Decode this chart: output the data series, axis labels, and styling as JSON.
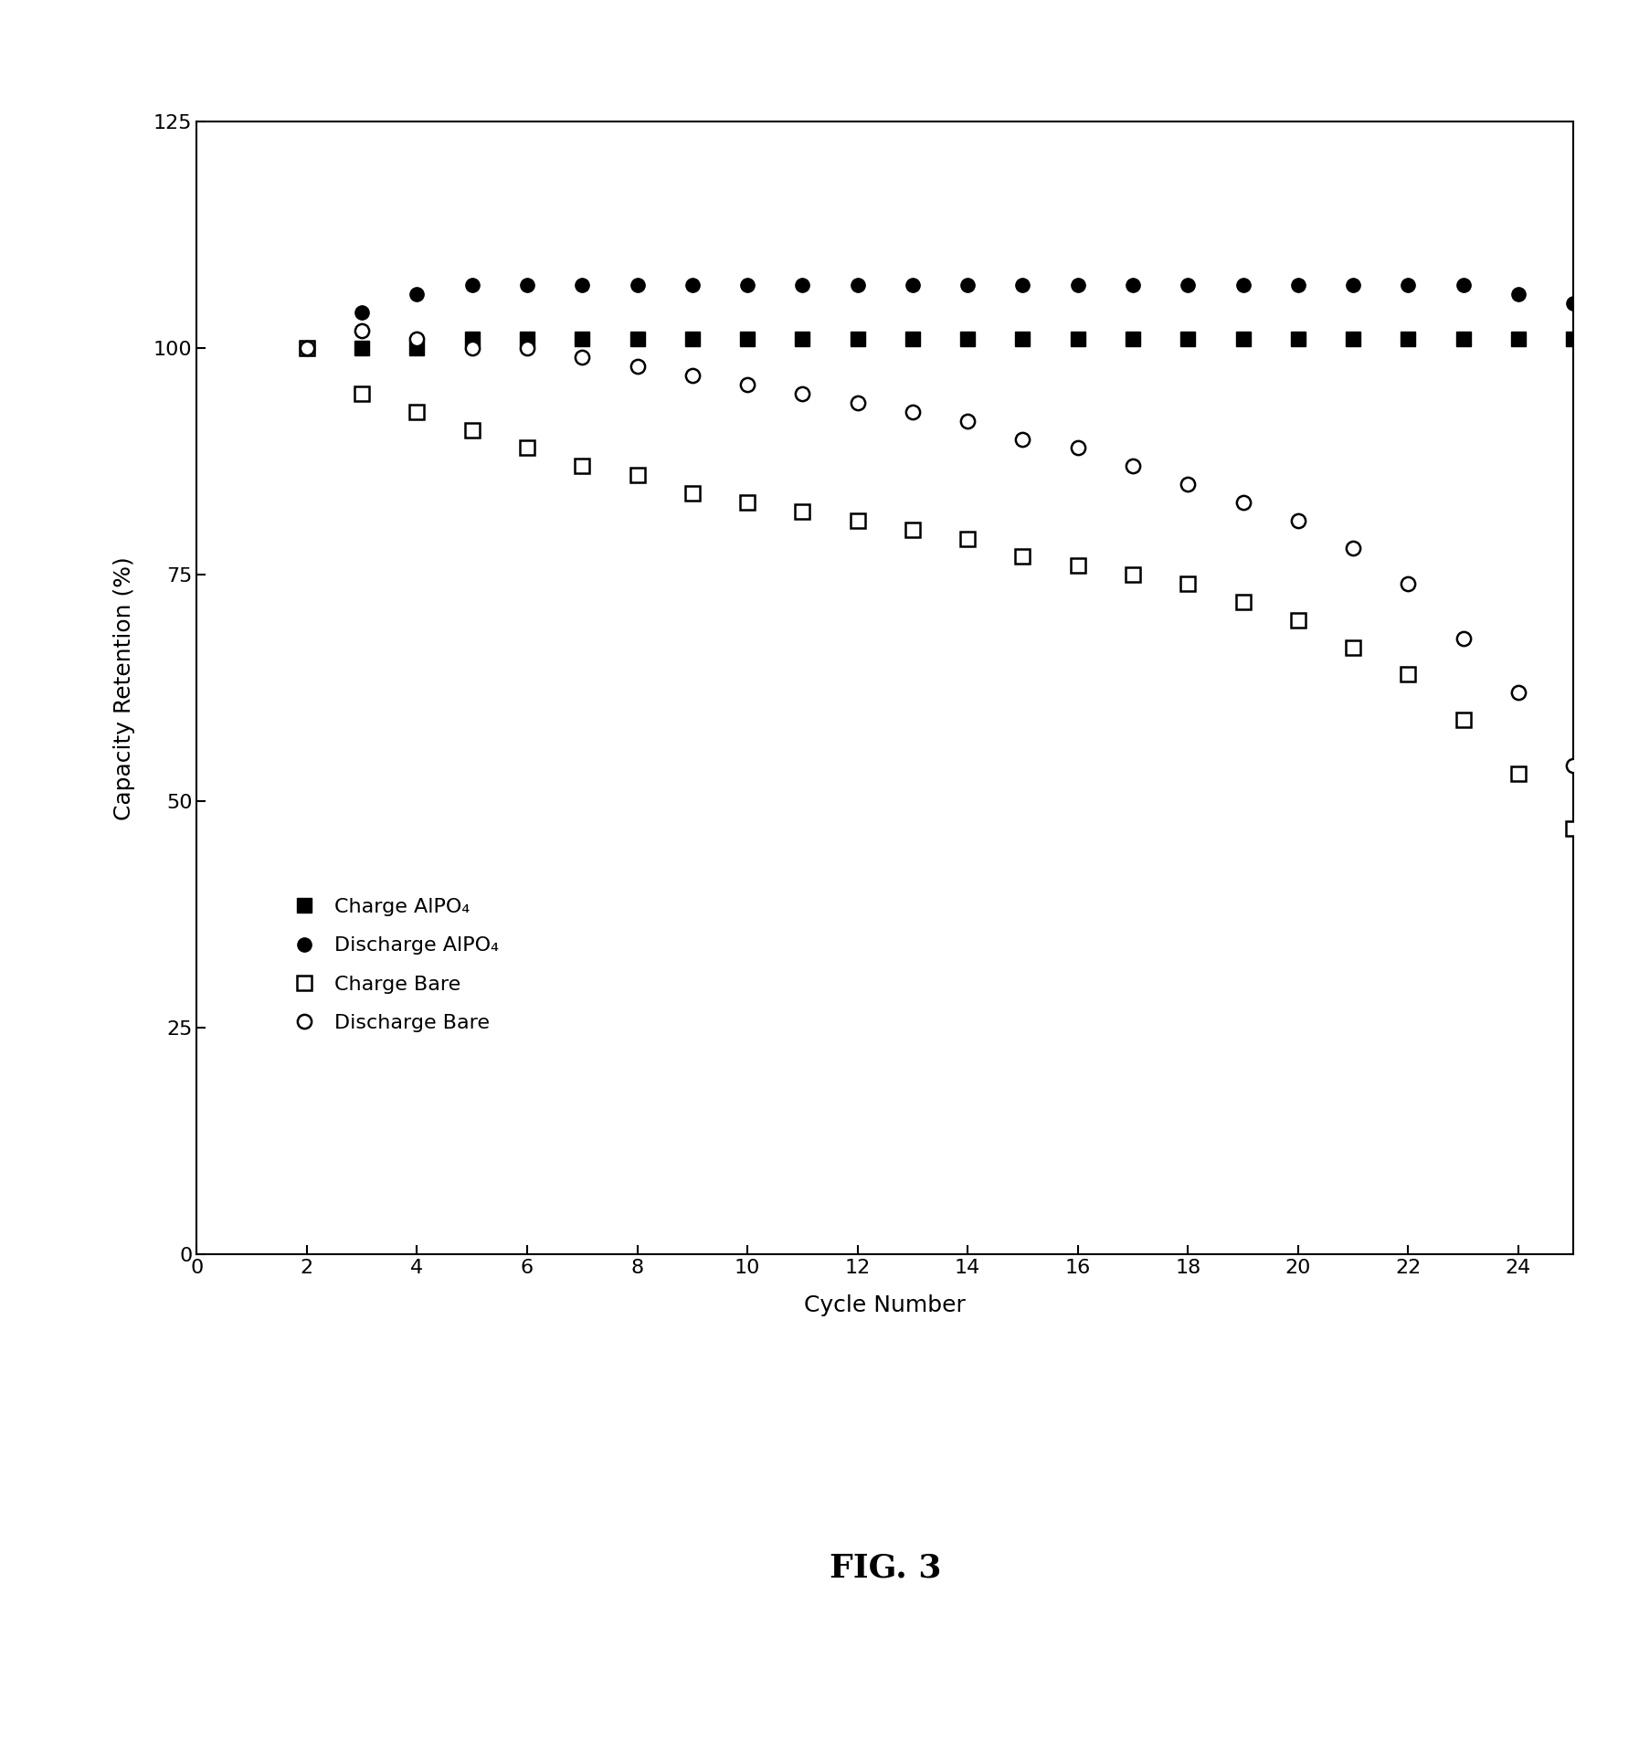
{
  "charge_alpo4_x": [
    2,
    3,
    4,
    5,
    6,
    7,
    8,
    9,
    10,
    11,
    12,
    13,
    14,
    15,
    16,
    17,
    18,
    19,
    20,
    21,
    22,
    23,
    24,
    25
  ],
  "charge_alpo4_y": [
    100,
    100,
    100,
    101,
    101,
    101,
    101,
    101,
    101,
    101,
    101,
    101,
    101,
    101,
    101,
    101,
    101,
    101,
    101,
    101,
    101,
    101,
    101,
    101
  ],
  "discharge_alpo4_x": [
    2,
    3,
    4,
    5,
    6,
    7,
    8,
    9,
    10,
    11,
    12,
    13,
    14,
    15,
    16,
    17,
    18,
    19,
    20,
    21,
    22,
    23,
    24,
    25
  ],
  "discharge_alpo4_y": [
    100,
    104,
    106,
    107,
    107,
    107,
    107,
    107,
    107,
    107,
    107,
    107,
    107,
    107,
    107,
    107,
    107,
    107,
    107,
    107,
    107,
    107,
    106,
    105
  ],
  "charge_bare_x": [
    2,
    3,
    4,
    5,
    6,
    7,
    8,
    9,
    10,
    11,
    12,
    13,
    14,
    15,
    16,
    17,
    18,
    19,
    20,
    21,
    22,
    23,
    24,
    25
  ],
  "charge_bare_y": [
    100,
    95,
    93,
    91,
    89,
    87,
    86,
    84,
    83,
    82,
    81,
    80,
    79,
    77,
    76,
    75,
    74,
    72,
    70,
    67,
    64,
    59,
    53,
    47
  ],
  "discharge_bare_x": [
    2,
    3,
    4,
    5,
    6,
    7,
    8,
    9,
    10,
    11,
    12,
    13,
    14,
    15,
    16,
    17,
    18,
    19,
    20,
    21,
    22,
    23,
    24,
    25
  ],
  "discharge_bare_y": [
    100,
    102,
    101,
    100,
    100,
    99,
    98,
    97,
    96,
    95,
    94,
    93,
    92,
    90,
    89,
    87,
    85,
    83,
    81,
    78,
    74,
    68,
    62,
    54
  ],
  "xlabel": "Cycle Number",
  "ylabel": "Capacity Retention (%)",
  "fig_label": "FIG. 3",
  "xlim": [
    0,
    25
  ],
  "ylim": [
    0,
    125
  ],
  "yticks": [
    0,
    25,
    50,
    75,
    100,
    125
  ],
  "xticks": [
    0,
    2,
    4,
    6,
    8,
    10,
    12,
    14,
    16,
    18,
    20,
    22,
    24
  ],
  "legend_labels": [
    "Charge AlPO₄",
    "Discharge AlPO₄",
    "Charge Bare",
    "Discharge Bare"
  ],
  "background_color": "#ffffff",
  "marker_size": 11,
  "tick_fontsize": 16,
  "label_fontsize": 18,
  "legend_fontsize": 16,
  "fig_label_fontsize": 26
}
